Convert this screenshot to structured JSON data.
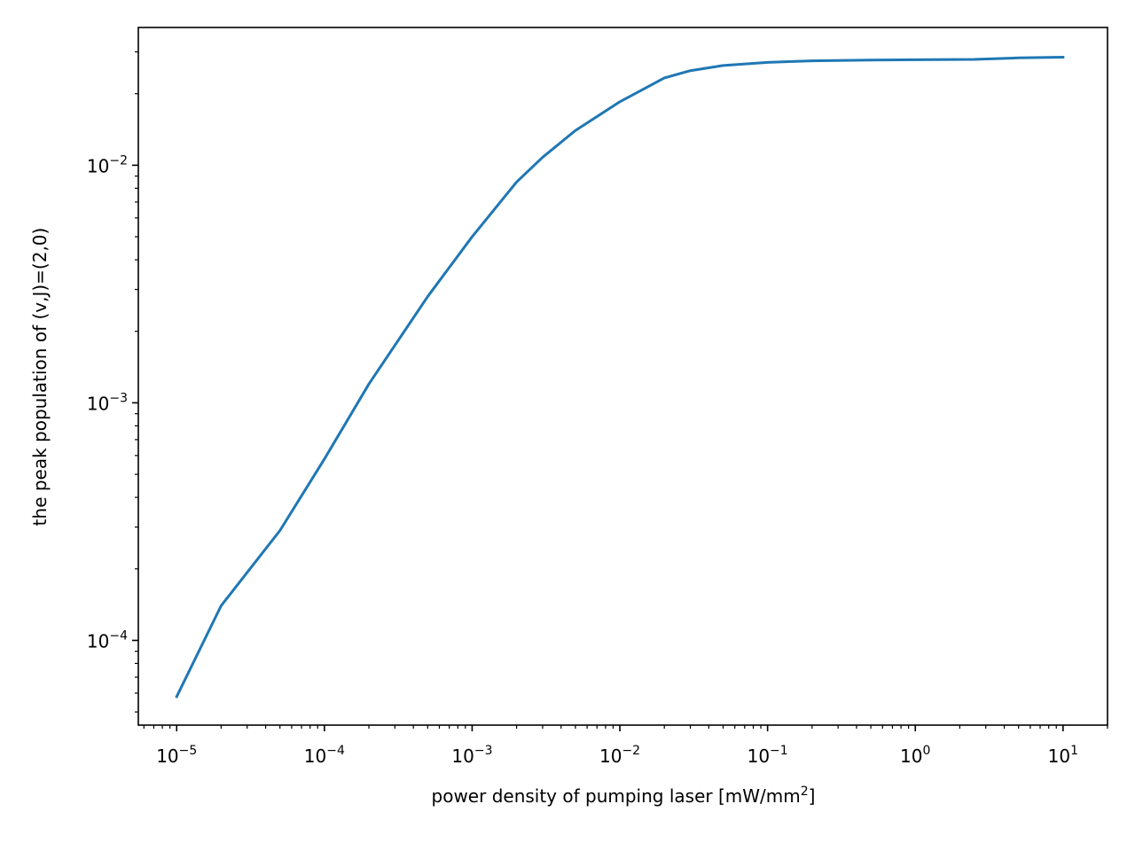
{
  "chart_data": {
    "type": "line",
    "xscale": "log",
    "yscale": "log",
    "xlim": [
      5.5e-06,
      20
    ],
    "ylim": [
      4.4e-05,
      0.038
    ],
    "grid": false,
    "xlabel": {
      "main": "power density of pumping laser [mW/mm",
      "sup": "2",
      "tail": "]"
    },
    "ylabel": "the peak population of (v,J)=(2,0)",
    "xticks": [
      {
        "value": 1e-05,
        "base": "10",
        "exp": "−5"
      },
      {
        "value": 0.0001,
        "base": "10",
        "exp": "−4"
      },
      {
        "value": 0.001,
        "base": "10",
        "exp": "−3"
      },
      {
        "value": 0.01,
        "base": "10",
        "exp": "−2"
      },
      {
        "value": 0.1,
        "base": "10",
        "exp": "−1"
      },
      {
        "value": 1,
        "base": "10",
        "exp": "0"
      },
      {
        "value": 10,
        "base": "10",
        "exp": "1"
      }
    ],
    "yticks": [
      {
        "value": 0.0001,
        "base": "10",
        "exp": "−4"
      },
      {
        "value": 0.001,
        "base": "10",
        "exp": "−3"
      },
      {
        "value": 0.01,
        "base": "10",
        "exp": "−2"
      }
    ],
    "series": [
      {
        "color": "#1f77b4",
        "x": [
          1e-05,
          2e-05,
          5e-05,
          0.0001,
          0.0002,
          0.0005,
          0.001,
          0.002,
          0.003,
          0.005,
          0.01,
          0.02,
          0.03,
          0.05,
          0.1,
          0.2,
          0.5,
          1,
          2.5,
          5,
          10
        ],
        "y": [
          5.8e-05,
          0.00014,
          0.00029,
          0.00058,
          0.0012,
          0.0028,
          0.005,
          0.0085,
          0.0108,
          0.014,
          0.0185,
          0.0233,
          0.025,
          0.0263,
          0.0271,
          0.0275,
          0.0277,
          0.0278,
          0.0279,
          0.0283,
          0.0285
        ]
      }
    ]
  }
}
